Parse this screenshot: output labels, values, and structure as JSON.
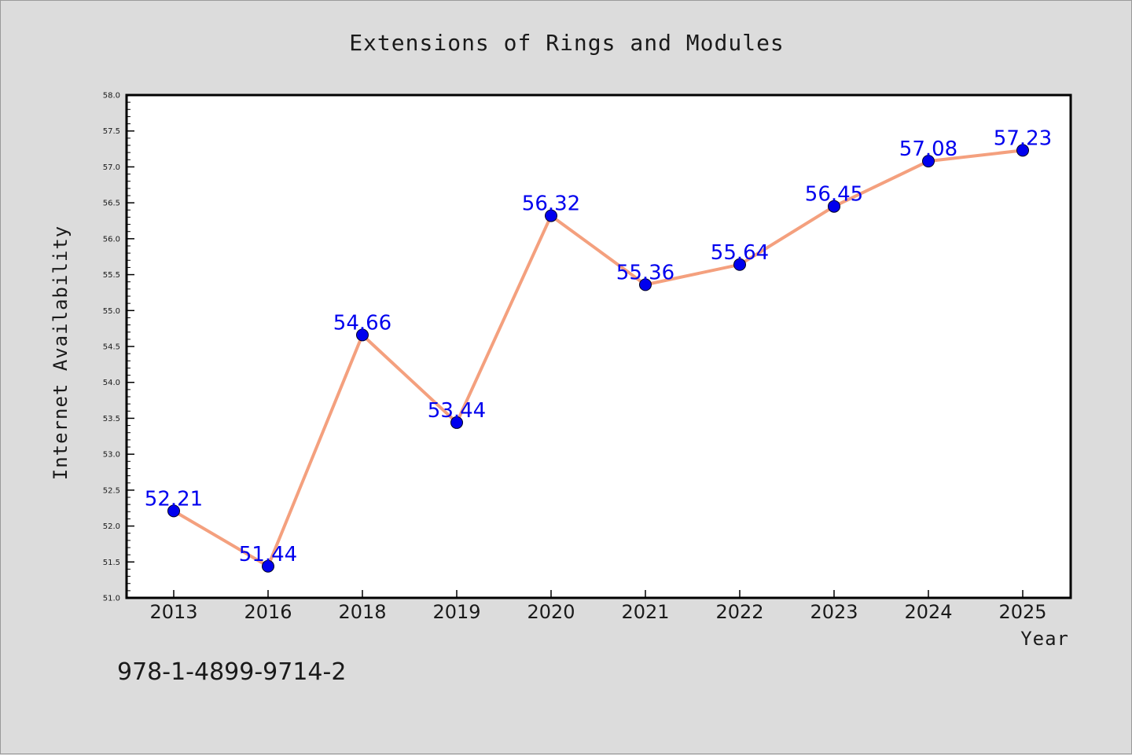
{
  "chart_data": {
    "type": "line",
    "title": "Extensions of Rings and Modules",
    "xlabel": "Year",
    "ylabel": "Internet Availability",
    "categories": [
      "2013",
      "2016",
      "2018",
      "2019",
      "2020",
      "2021",
      "2022",
      "2023",
      "2024",
      "2025"
    ],
    "series": [
      {
        "values": [
          52.21,
          51.44,
          54.66,
          53.44,
          56.32,
          55.36,
          55.64,
          56.45,
          57.08,
          57.23
        ],
        "data_labels": [
          "52.21",
          "51.44",
          "54.66",
          "53.44",
          "56.32",
          "55.36",
          "55.64",
          "56.45",
          "57.08",
          "57.23"
        ],
        "line_color": "#f4a07e",
        "marker_color": "#0000ee"
      }
    ],
    "ylim": [
      51.0,
      58.0
    ],
    "yticks": [
      "51.0",
      "51.5",
      "52.0",
      "52.5",
      "53.0",
      "53.5",
      "54.0",
      "54.5",
      "55.0",
      "55.5",
      "56.0",
      "56.5",
      "57.0",
      "57.5",
      "58.0"
    ],
    "grid": false,
    "legend": "none"
  },
  "footer": {
    "isbn": "978-1-4899-9714-2"
  },
  "colors": {
    "background": "#dcdcdc",
    "plot_background": "#ffffff",
    "line": "#f4a07e",
    "marker": "#0000ee",
    "data_label": "#0000ee"
  }
}
